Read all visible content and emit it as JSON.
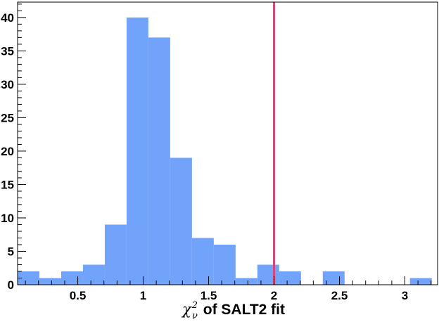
{
  "chart_data": {
    "type": "bar",
    "subtype": "histogram",
    "x_bins": {
      "start": 0.04,
      "width": 0.1666,
      "counts": [
        2,
        1,
        2,
        3,
        9,
        40,
        37,
        19,
        7,
        6,
        1,
        3,
        2,
        0,
        2,
        0,
        0,
        0,
        1
      ]
    },
    "xlim": [
      0.04,
      3.25
    ],
    "ylim": [
      0,
      42.3
    ],
    "x_ticks": [
      0.5,
      1,
      1.5,
      2,
      2.5,
      3
    ],
    "x_tick_labels": [
      "0.5",
      "1",
      "1.5",
      "2",
      "2.5",
      "3"
    ],
    "y_ticks": [
      0,
      5,
      10,
      15,
      20,
      25,
      30,
      35,
      40
    ],
    "y_tick_labels": [
      "0",
      "5",
      "10",
      "15",
      "20",
      "25",
      "30",
      "35",
      "40"
    ],
    "xlabel": {
      "symbol": "χ",
      "subscript": "ν",
      "superscript": "2",
      "text": " of SALT2 fit"
    },
    "ylabel": "",
    "grid": false,
    "bar_color": "#72a3fb",
    "reference_line": {
      "x": 2.0,
      "color": "#d64878"
    }
  }
}
